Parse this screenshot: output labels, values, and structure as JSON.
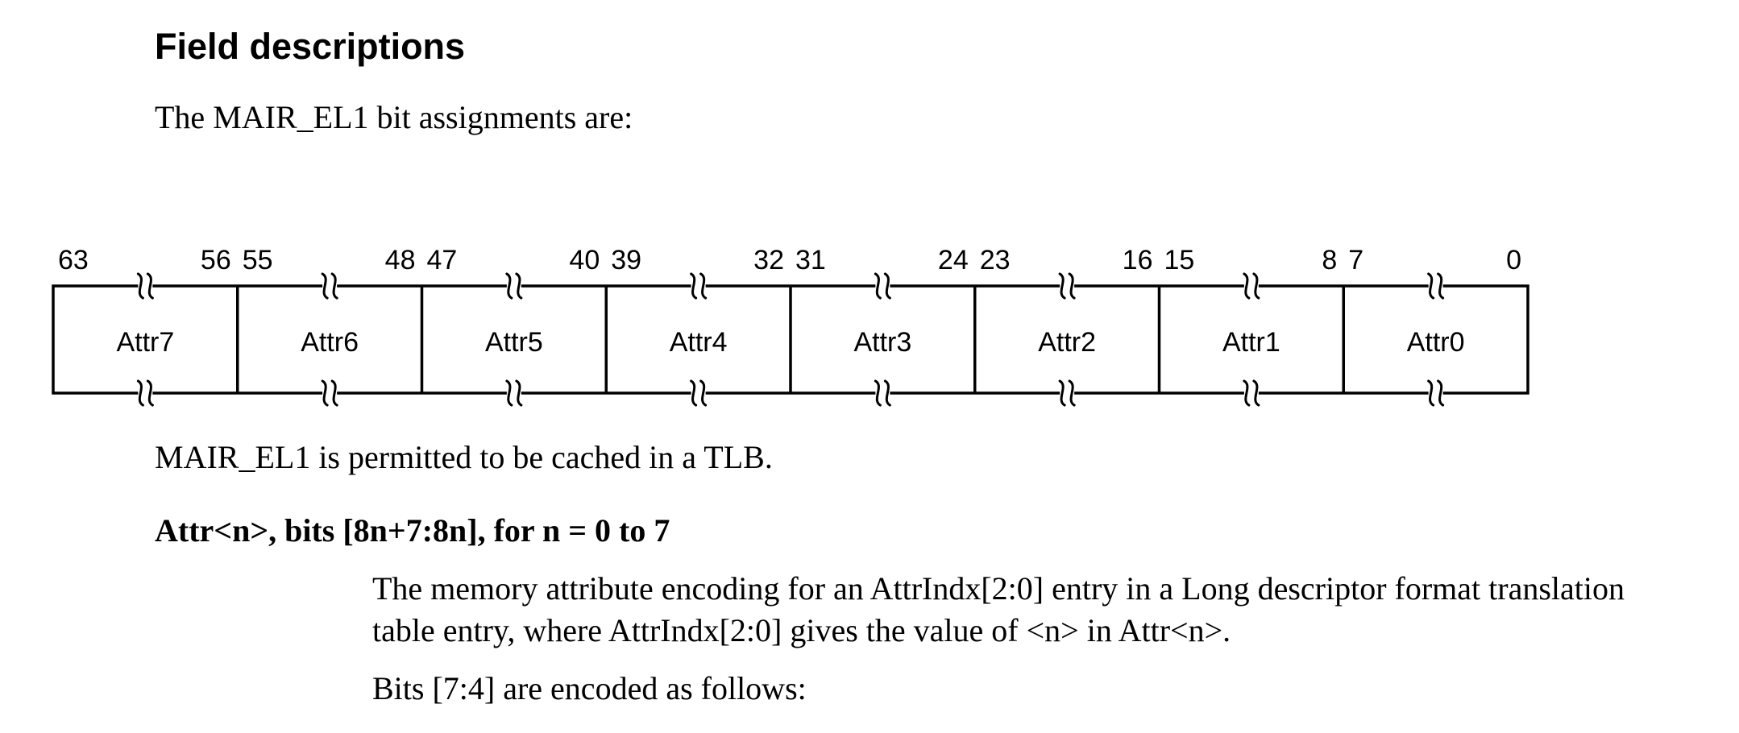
{
  "heading": "Field descriptions",
  "intro": "The MAIR_EL1 bit assignments are:",
  "register": {
    "fields": [
      {
        "name": "Attr7",
        "msb": "63",
        "lsb": "56"
      },
      {
        "name": "Attr6",
        "msb": "55",
        "lsb": "48"
      },
      {
        "name": "Attr5",
        "msb": "47",
        "lsb": "40"
      },
      {
        "name": "Attr4",
        "msb": "39",
        "lsb": "32"
      },
      {
        "name": "Attr3",
        "msb": "31",
        "lsb": "24"
      },
      {
        "name": "Attr2",
        "msb": "23",
        "lsb": "16"
      },
      {
        "name": "Attr1",
        "msb": "15",
        "lsb": "8"
      },
      {
        "name": "Attr0",
        "msb": "7",
        "lsb": "0"
      }
    ]
  },
  "cached_note": "MAIR_EL1 is permitted to be cached in a TLB.",
  "field_title": "Attr<n>, bits [8n+7:8n], for n = 0 to 7",
  "field_description": {
    "line1": "The memory attribute encoding for an AttrIndx[2:0] entry in a Long descriptor format translation",
    "line2": "table entry, where AttrIndx[2:0] gives the value of <n> in Attr<n>."
  },
  "bits_encoding_note": "Bits [7:4] are encoded as follows:"
}
